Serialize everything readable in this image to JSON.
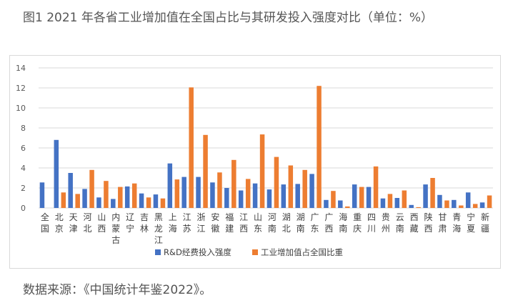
{
  "title": "图1 2021 年各省工业增加值在全国占比与其研发投入强度对比（单位：%）",
  "source": "数据来源：《中国统计年鉴2022》。",
  "chart_data": {
    "type": "bar",
    "categories": [
      "全国",
      "北京",
      "天津",
      "河北",
      "山西",
      "内蒙古",
      "辽宁",
      "吉林",
      "黑龙江",
      "上海",
      "江苏",
      "浙江",
      "安徽",
      "福建",
      "江西",
      "山东",
      "河南",
      "湖北",
      "湖南",
      "广东",
      "广西",
      "海南",
      "重庆",
      "四川",
      "贵州",
      "云南",
      "西藏",
      "陕西",
      "甘肃",
      "青海",
      "宁夏",
      "新疆"
    ],
    "series": [
      {
        "name": "R&D经费投入强度",
        "color": "#4472c4",
        "values": [
          2.55,
          6.8,
          3.5,
          1.9,
          1.05,
          0.9,
          2.15,
          1.45,
          1.35,
          4.45,
          3.1,
          3.1,
          2.55,
          2.0,
          1.75,
          2.45,
          1.85,
          2.35,
          2.4,
          3.4,
          0.8,
          0.75,
          2.35,
          2.1,
          0.95,
          1.0,
          0.3,
          2.35,
          1.3,
          0.8,
          1.55,
          0.55
        ]
      },
      {
        "name": "工业增加值占全国比重",
        "color": "#ed7d31",
        "values": [
          null,
          1.55,
          1.4,
          3.8,
          2.7,
          2.1,
          2.45,
          1.05,
          0.95,
          2.85,
          12.05,
          7.3,
          3.55,
          4.8,
          2.9,
          7.35,
          5.1,
          4.25,
          3.8,
          12.2,
          1.7,
          0.15,
          2.1,
          4.15,
          1.4,
          1.75,
          0.08,
          3.0,
          0.75,
          0.25,
          0.4,
          1.25
        ]
      }
    ],
    "yticks": [
      "0",
      "2",
      "4",
      "6",
      "8",
      "10",
      "12",
      "14"
    ],
    "ylim": [
      0,
      14
    ],
    "grid": true,
    "legend_position": "bottom"
  }
}
